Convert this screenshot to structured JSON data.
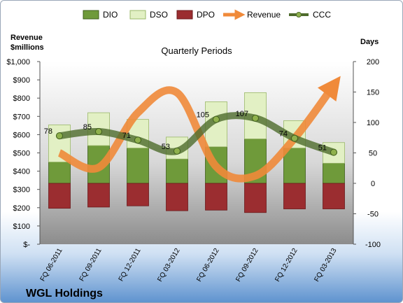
{
  "chart_data": {
    "type": "bar",
    "title": "Quarterly Periods",
    "company": "WGL Holdings",
    "y_left_label_line1": "Revenue",
    "y_left_label_line2": "$millions",
    "y_right_label": "Days",
    "y_left_lim": [
      0,
      1000
    ],
    "y_right_lim": [
      -100,
      200
    ],
    "y_left_ticks": [
      "$-",
      "$100",
      "$200",
      "$300",
      "$400",
      "$500",
      "$600",
      "$700",
      "$800",
      "$900",
      "$1,000"
    ],
    "y_right_ticks": [
      "-100",
      "-50",
      "0",
      "50",
      "100",
      "150",
      "200"
    ],
    "grid": false,
    "legend_position": "top",
    "categories": [
      "FQ 06-2011",
      "FQ 09-2011",
      "FQ 12-2011",
      "FQ 03-2012",
      "FQ 06-2012",
      "FQ 09-2012",
      "FQ 12-2012",
      "FQ 03-2013"
    ],
    "series": [
      {
        "name": "DIO",
        "kind": "stacked-bar",
        "axis": "right",
        "color": "#6f9a3a",
        "values": [
          35,
          62,
          58,
          40,
          60,
          73,
          58,
          33
        ]
      },
      {
        "name": "DSO",
        "kind": "stacked-bar",
        "axis": "right",
        "color": "#e2f0c4",
        "values": [
          61,
          54,
          47,
          36,
          74,
          76,
          45,
          34
        ]
      },
      {
        "name": "DPO",
        "kind": "stacked-bar",
        "axis": "right",
        "color": "#9b2d30",
        "values": [
          -41,
          -39,
          -37,
          -45,
          -44,
          -48,
          -42,
          -42
        ]
      },
      {
        "name": "Revenue",
        "kind": "line",
        "axis": "left",
        "color": "#f08a3a",
        "values": [
          500,
          420,
          720,
          830,
          425,
          375,
          580,
          870
        ]
      },
      {
        "name": "CCC",
        "kind": "line",
        "axis": "right",
        "color": "#4e6b2c",
        "values": [
          78,
          85,
          71,
          53,
          105,
          107,
          74,
          51
        ],
        "labels": [
          "78",
          "85",
          "71",
          "53",
          "105",
          "107",
          "74",
          "51"
        ]
      }
    ]
  }
}
